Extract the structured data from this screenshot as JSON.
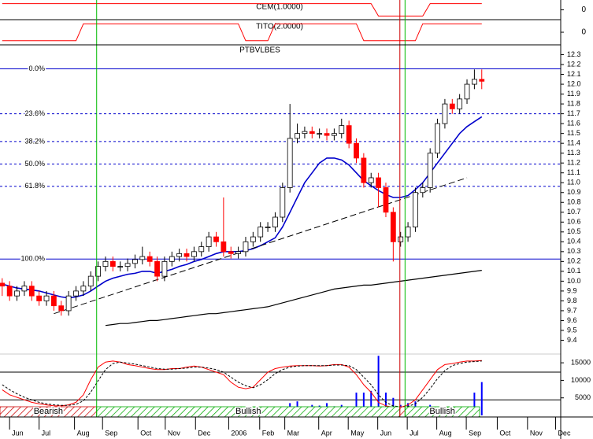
{
  "chart_data": {
    "type": "candlestick",
    "title": "PTBVLBES",
    "xlim": [
      -0.3,
      75.7
    ],
    "xticks": [
      {
        "value": 1,
        "label": "Jun"
      },
      {
        "value": 5,
        "label": "Jul"
      },
      {
        "value": 9.8,
        "label": "Aug"
      },
      {
        "value": 13.6,
        "label": "Sep"
      },
      {
        "value": 18.4,
        "label": "Oct"
      },
      {
        "value": 22.1,
        "label": "Nov"
      },
      {
        "value": 26.2,
        "label": "Dec"
      },
      {
        "value": 30.7,
        "label": "2006"
      },
      {
        "value": 34.9,
        "label": "Feb"
      },
      {
        "value": 38.3,
        "label": "Mar"
      },
      {
        "value": 42.9,
        "label": "Apr"
      },
      {
        "value": 46.9,
        "label": "May"
      },
      {
        "value": 50.9,
        "label": "Jun"
      },
      {
        "value": 54.9,
        "label": "Jul"
      },
      {
        "value": 58.9,
        "label": "Aug"
      },
      {
        "value": 62.9,
        "label": "Sep"
      },
      {
        "value": 67.1,
        "label": "Oct"
      },
      {
        "value": 71.2,
        "label": "Nov"
      },
      {
        "value": 75,
        "label": "Dec"
      }
    ],
    "ylim": [
      9.26,
      12.4
    ],
    "yticks": [
      9.4,
      9.5,
      9.6,
      9.7,
      9.8,
      9.9,
      {
        "value": 10,
        "label": "10.0"
      },
      10.1,
      10.2,
      10.3,
      10.4,
      10.5,
      10.6,
      10.7,
      10.8,
      10.9,
      {
        "value": 11,
        "label": "11.0"
      },
      11.1,
      11.2,
      11.3,
      11.4,
      11.5,
      11.6,
      11.7,
      11.8,
      11.9,
      {
        "value": 12,
        "label": "12.0"
      },
      12.1,
      12.2,
      12.3
    ],
    "open": [
      9.98,
      9.95,
      9.85,
      9.9,
      9.95,
      9.85,
      9.8,
      9.85,
      9.75,
      9.7,
      9.85,
      9.9,
      9.95,
      10.05,
      10.15,
      10.2,
      10.15,
      10.15,
      10.18,
      10.22,
      10.25,
      10.2,
      10.05,
      10.2,
      10.25,
      10.28,
      10.25,
      10.3,
      10.35,
      10.45,
      10.4,
      10.3,
      10.28,
      10.3,
      10.4,
      10.45,
      10.55,
      10.55,
      10.65,
      10.95,
      11.45,
      11.5,
      11.52,
      11.5,
      11.5,
      11.48,
      11.5,
      11.58,
      11.4,
      11.25,
      11.0,
      11.05,
      10.95,
      10.7,
      10.4,
      10.45,
      10.55,
      10.9,
      10.95,
      11.3,
      11.6,
      11.8,
      11.75,
      11.85,
      12.0,
      12.05
    ],
    "high": [
      10.03,
      10.0,
      9.95,
      10.0,
      10.0,
      9.9,
      9.9,
      9.9,
      9.8,
      9.9,
      9.95,
      10.0,
      10.1,
      10.2,
      10.25,
      10.25,
      10.2,
      10.23,
      10.27,
      10.35,
      10.3,
      10.25,
      10.25,
      10.3,
      10.33,
      10.33,
      10.35,
      10.4,
      10.5,
      10.5,
      10.85,
      10.35,
      10.35,
      10.45,
      10.5,
      10.6,
      10.6,
      10.7,
      11.0,
      11.8,
      11.6,
      11.57,
      11.57,
      11.55,
      11.55,
      11.55,
      11.65,
      11.63,
      11.45,
      11.3,
      11.1,
      11.1,
      11.0,
      10.75,
      10.5,
      10.6,
      10.95,
      11.0,
      11.35,
      11.65,
      11.85,
      11.85,
      11.9,
      12.05,
      12.15,
      12.15
    ],
    "low": [
      9.85,
      9.8,
      9.8,
      9.85,
      9.8,
      9.75,
      9.75,
      9.7,
      9.65,
      9.65,
      9.8,
      9.85,
      9.9,
      10.0,
      10.1,
      10.1,
      10.1,
      10.1,
      10.13,
      10.17,
      10.15,
      10.0,
      10.0,
      10.15,
      10.2,
      10.2,
      10.2,
      10.25,
      10.3,
      10.35,
      10.25,
      10.23,
      10.23,
      10.25,
      10.35,
      10.4,
      10.5,
      10.5,
      10.6,
      10.9,
      11.4,
      11.45,
      11.45,
      11.45,
      11.43,
      11.43,
      11.45,
      11.35,
      11.2,
      10.95,
      10.95,
      10.75,
      10.65,
      10.2,
      10.35,
      10.4,
      10.5,
      10.85,
      10.9,
      11.25,
      11.55,
      11.7,
      11.7,
      11.8,
      11.95,
      11.95
    ],
    "close": [
      9.95,
      9.85,
      9.9,
      9.95,
      9.85,
      9.8,
      9.85,
      9.75,
      9.7,
      9.85,
      9.9,
      9.95,
      10.05,
      10.15,
      10.2,
      10.15,
      10.15,
      10.18,
      10.22,
      10.25,
      10.2,
      10.05,
      10.2,
      10.25,
      10.28,
      10.25,
      10.3,
      10.35,
      10.45,
      10.4,
      10.3,
      10.28,
      10.3,
      10.4,
      10.45,
      10.55,
      10.55,
      10.65,
      10.95,
      11.45,
      11.5,
      11.52,
      11.5,
      11.5,
      11.48,
      11.5,
      11.58,
      11.4,
      11.25,
      11.0,
      11.05,
      10.95,
      10.7,
      10.4,
      10.45,
      10.55,
      10.9,
      10.95,
      11.3,
      11.6,
      11.8,
      11.75,
      11.85,
      12.0,
      12.05,
      12.03
    ],
    "up_color": "#ffffff",
    "down_color": "#ff0000",
    "moving_averages": [
      {
        "color": "#0000cc",
        "values": [
          9.97,
          9.95,
          9.93,
          9.92,
          9.91,
          9.9,
          9.88,
          9.86,
          9.84,
          9.83,
          9.84,
          9.86,
          9.9,
          9.95,
          10.0,
          10.03,
          10.05,
          10.07,
          10.08,
          10.1,
          10.1,
          10.08,
          10.1,
          10.12,
          10.15,
          10.17,
          10.2,
          10.22,
          10.25,
          10.28,
          10.3,
          10.3,
          10.3,
          10.31,
          10.33,
          10.36,
          10.4,
          10.44,
          10.55,
          10.7,
          10.85,
          11.0,
          11.1,
          11.2,
          11.25,
          11.25,
          11.23,
          11.18,
          11.1,
          11.02,
          10.97,
          10.92,
          10.88,
          10.85,
          10.85,
          10.87,
          10.93,
          11.0,
          11.1,
          11.2,
          11.3,
          11.4,
          11.5,
          11.57,
          11.62,
          11.67
        ]
      },
      {
        "color": "#000000",
        "values": [
          null,
          null,
          null,
          null,
          null,
          null,
          null,
          null,
          null,
          null,
          null,
          null,
          null,
          null,
          9.55,
          9.56,
          9.57,
          9.57,
          9.58,
          9.59,
          9.6,
          9.6,
          9.61,
          9.62,
          9.63,
          9.64,
          9.65,
          9.66,
          9.67,
          9.67,
          9.68,
          9.69,
          9.7,
          9.71,
          9.72,
          9.73,
          9.74,
          9.76,
          9.78,
          9.8,
          9.82,
          9.84,
          9.86,
          9.88,
          9.9,
          9.92,
          9.93,
          9.94,
          9.95,
          9.96,
          9.96,
          9.97,
          9.98,
          9.99,
          10.0,
          10.01,
          10.02,
          10.03,
          10.04,
          10.05,
          10.06,
          10.07,
          10.08,
          10.09,
          10.1,
          10.11
        ]
      }
    ],
    "trendline": {
      "color": "#000000",
      "x": [
        7,
        63
      ],
      "y": [
        9.67,
        11.05
      ]
    },
    "fibonacci": {
      "color": "#0000cc",
      "levels": [
        {
          "label": "0.0%",
          "value": 12.156,
          "dashed": false
        },
        {
          "label": "23.6%",
          "value": 11.7,
          "dashed": true
        },
        {
          "label": "38.2%",
          "value": 11.418,
          "dashed": true
        },
        {
          "label": "50.0%",
          "value": 11.19,
          "dashed": true
        },
        {
          "label": "61.8%",
          "value": 10.963,
          "dashed": true
        },
        {
          "label": "100.0%",
          "value": 10.225,
          "dashed": false
        }
      ]
    },
    "signals": [
      {
        "value": 12.8,
        "color": "#00bb00"
      },
      {
        "value": 53.9,
        "color": "#cc0000"
      },
      {
        "value": 54.6,
        "color": "#00bb00"
      }
    ],
    "regions": [
      {
        "label": "Bearish",
        "start": -0.3,
        "end": 12.8,
        "color": "#cc0000"
      },
      {
        "label": "Bullish",
        "start": 12.8,
        "end": 53.9,
        "color": "#00aa00"
      },
      {
        "label": null,
        "start": 53.9,
        "end": 54.6,
        "color": "#cc0000"
      },
      {
        "label": "Bullish",
        "start": 54.6,
        "end": 64.7,
        "color": "#00aa00"
      }
    ],
    "indicators": [
      {
        "title": "CEM(1.0000)",
        "color": "#ff0000",
        "ylim": [
          -1.2,
          1.2
        ],
        "yticks": [
          0
        ],
        "values": [
          1,
          1,
          1,
          1,
          1,
          1,
          1,
          1,
          1,
          1,
          1,
          1,
          1,
          1,
          1,
          1,
          1,
          1,
          1,
          1,
          1,
          1,
          1,
          1,
          1,
          1,
          1,
          1,
          1,
          1,
          1,
          1,
          1,
          1,
          1,
          1,
          1,
          1,
          1,
          1,
          1,
          1,
          1,
          1,
          1,
          1,
          1,
          1,
          1,
          1,
          1,
          -1,
          -1,
          -1,
          -1,
          -1,
          -1,
          -1,
          1,
          1,
          1,
          1,
          1,
          1,
          1,
          1
        ]
      },
      {
        "title": "TITO(2.0000)",
        "color": "#ff0000",
        "ylim": [
          -1.2,
          1.2
        ],
        "yticks": [
          0
        ],
        "values": [
          -1,
          -1,
          -1,
          -1,
          -1,
          -1,
          -1,
          -1,
          -1,
          -1,
          -1,
          1,
          1,
          1,
          1,
          1,
          1,
          1,
          1,
          1,
          1,
          1,
          1,
          1,
          1,
          1,
          1,
          1,
          1,
          1,
          1,
          1,
          1,
          -1,
          -1,
          -1,
          -1,
          1,
          1,
          1,
          1,
          1,
          1,
          1,
          1,
          1,
          1,
          1,
          1,
          -1,
          -1,
          -1,
          -1,
          -1,
          -1,
          -1,
          -1,
          1,
          1,
          1,
          1,
          1,
          1,
          1,
          1,
          1
        ]
      }
    ],
    "volume": {
      "color": "#0000ff",
      "ylim": [
        0,
        17500
      ],
      "yticks": [
        5000,
        10000,
        15000
      ],
      "values": [
        1200,
        800,
        900,
        700,
        1000,
        800,
        1500,
        1200,
        1000,
        900,
        800,
        1100,
        1300,
        1500,
        1200,
        1000,
        900,
        1100,
        1400,
        1600,
        1300,
        2500,
        1500,
        1200,
        1100,
        1000,
        1300,
        1500,
        2000,
        1400,
        2500,
        1300,
        1200,
        1500,
        1800,
        2000,
        1600,
        2200,
        2500,
        3500,
        4000,
        2500,
        3000,
        2800,
        3500,
        2600,
        3000,
        2500,
        6500,
        6500,
        7000,
        17000,
        6500,
        5000,
        3000,
        3500,
        4000,
        2500,
        3000,
        2500,
        2000,
        2500,
        1500,
        2000,
        6500,
        9500
      ]
    },
    "stochastic": {
      "ylim": [
        0,
        100
      ],
      "levels": [
        75,
        20
      ],
      "series": [
        {
          "color": "#ff0000",
          "dashed": false,
          "values": [
            40,
            30,
            25,
            20,
            15,
            12,
            10,
            8,
            8,
            10,
            15,
            30,
            60,
            85,
            95,
            97,
            95,
            90,
            88,
            85,
            82,
            80,
            80,
            82,
            82,
            85,
            87,
            85,
            80,
            75,
            70,
            55,
            45,
            42,
            45,
            60,
            75,
            82,
            85,
            87,
            88,
            88,
            88,
            87,
            88,
            90,
            90,
            85,
            70,
            50,
            35,
            15,
            8,
            5,
            5,
            10,
            20,
            40,
            60,
            80,
            90,
            92,
            95,
            97,
            97,
            98
          ]
        },
        {
          "color": "#000000",
          "dashed": true,
          "values": [
            50,
            40,
            32,
            25,
            20,
            15,
            12,
            10,
            9,
            9,
            11,
            18,
            35,
            58,
            80,
            92,
            95,
            93,
            91,
            88,
            85,
            82,
            81,
            81,
            82,
            83,
            85,
            85,
            83,
            80,
            75,
            65,
            55,
            48,
            44,
            50,
            60,
            72,
            80,
            85,
            87,
            88,
            88,
            88,
            88,
            89,
            89,
            88,
            80,
            65,
            50,
            30,
            15,
            8,
            6,
            7,
            12,
            25,
            42,
            62,
            78,
            88,
            92,
            95,
            96,
            97
          ]
        }
      ]
    }
  }
}
